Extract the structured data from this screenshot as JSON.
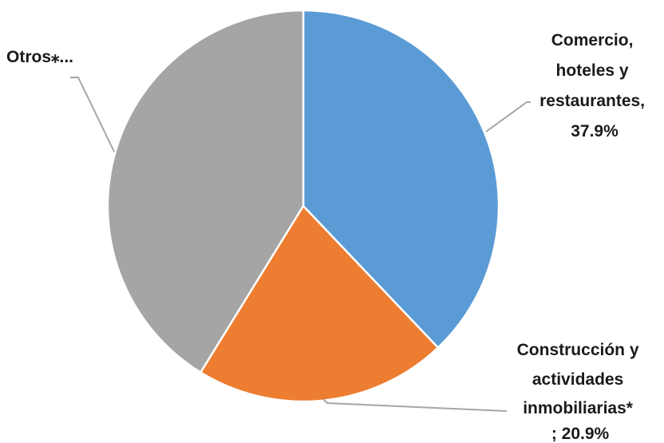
{
  "chart_data": {
    "type": "pie",
    "title": "",
    "slices": [
      {
        "label": "Comercio, hoteles y restaurantes",
        "value": 37.9,
        "color": "#5B9BD5",
        "label_lines": [
          "Comercio,",
          "hoteles y",
          "restaurantes,",
          "37.9%"
        ]
      },
      {
        "label": "Construcción y actividades inmobiliarias*",
        "value": 20.9,
        "color": "#ED7D31",
        "label_lines": [
          "Construcción y",
          "actividades",
          "inmobiliarias*",
          "; 20.9%"
        ]
      },
      {
        "label": "Otros*",
        "value": 41.2,
        "color": "#A5A5A5",
        "label_lines": [
          "Otros⁎..."
        ]
      }
    ],
    "legend": "none",
    "start_angle_deg": 0,
    "direction": "clockwise"
  }
}
